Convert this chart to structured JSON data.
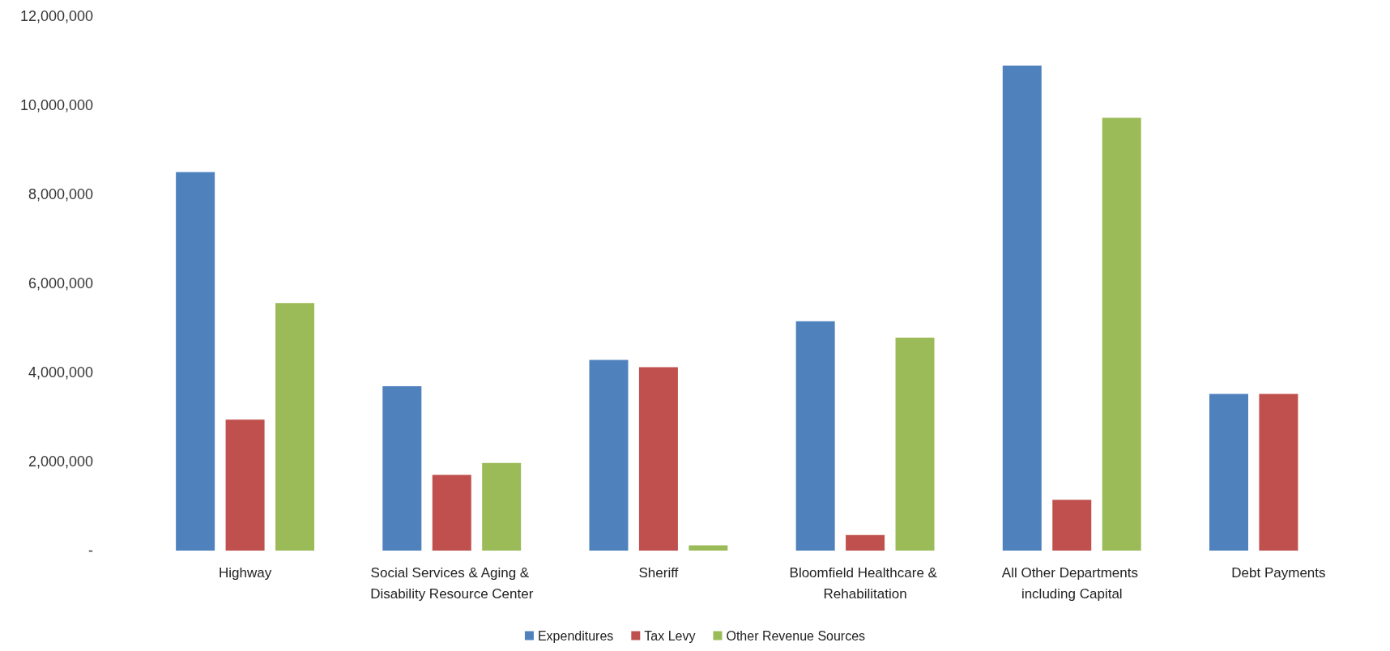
{
  "chart_data": {
    "type": "bar",
    "categories": [
      "Highway",
      "Social Services & Aging & Disability Resource Center",
      "Sheriff",
      "Bloomfield Healthcare & Rehabilitation",
      "All Other Departments including Capital",
      "Debt Payments"
    ],
    "series": [
      {
        "name": "Expenditures",
        "color": "#4f81bd",
        "values": [
          8500000,
          3690000,
          4280000,
          5150000,
          10890000,
          3520000
        ]
      },
      {
        "name": "Tax Levy",
        "color": "#c0504d",
        "values": [
          2940000,
          1700000,
          4120000,
          350000,
          1140000,
          3520000
        ]
      },
      {
        "name": "Other Revenue Sources",
        "color": "#9bbb59",
        "values": [
          5560000,
          1970000,
          120000,
          4780000,
          9720000,
          null
        ]
      }
    ],
    "ylim": [
      0,
      12000000
    ],
    "yticks": [
      {
        "value": 0,
        "label": "-"
      },
      {
        "value": 2000000,
        "label": "2,000,000"
      },
      {
        "value": 4000000,
        "label": "4,000,000"
      },
      {
        "value": 6000000,
        "label": "6,000,000"
      },
      {
        "value": 8000000,
        "label": "8,000,000"
      },
      {
        "value": 10000000,
        "label": "10,000,000"
      },
      {
        "value": 12000000,
        "label": "12,000,000"
      }
    ],
    "grid": false,
    "legend": "bottom"
  }
}
